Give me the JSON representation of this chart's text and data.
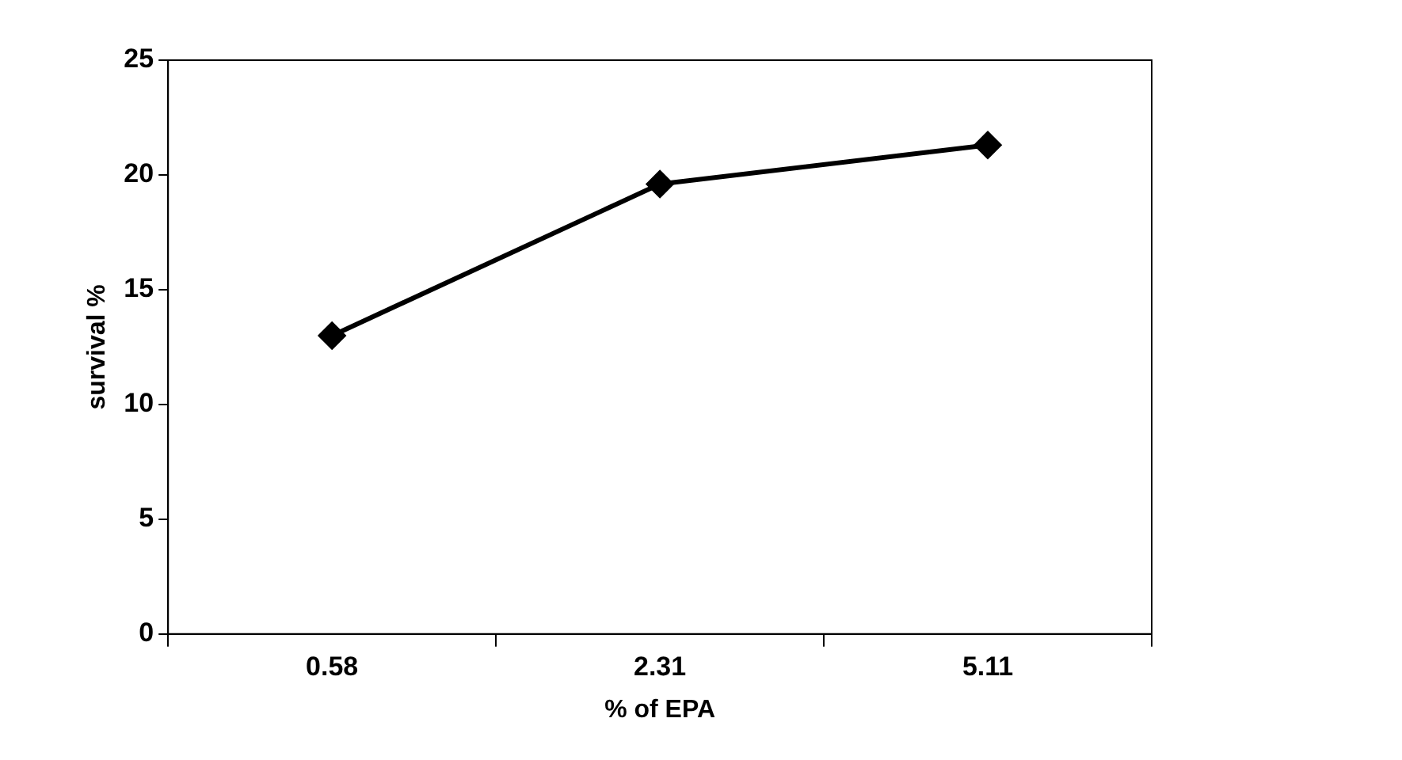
{
  "chart_data": {
    "type": "line",
    "xlabel": "% of EPA",
    "ylabel": "survival %",
    "categories": [
      "0.58",
      "2.31",
      "5.11"
    ],
    "series": [
      {
        "color": "#000000",
        "values": [
          13.0,
          19.6,
          21.3
        ]
      }
    ],
    "ylim": [
      0,
      25
    ],
    "yticks": [
      0,
      5,
      10,
      15,
      20,
      25
    ],
    "grid": false,
    "legend": false,
    "marker": "diamond",
    "line_style": "solid"
  }
}
